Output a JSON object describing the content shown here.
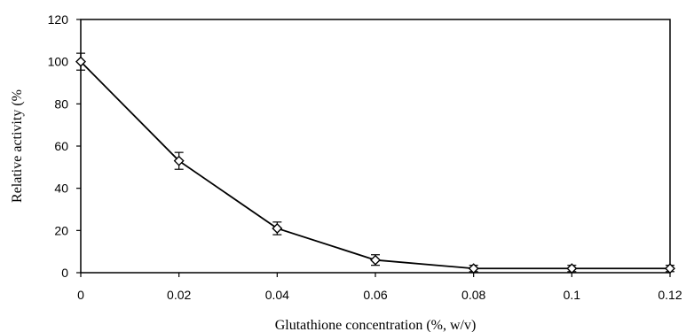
{
  "chart_data": {
    "type": "line",
    "xlabel": "Glutathione concentration (%, w/v)",
    "ylabel": "Relative activity (%",
    "xlim": [
      0,
      0.12
    ],
    "ylim": [
      0,
      120
    ],
    "x_ticks": [
      "0",
      "0.02",
      "0.04",
      "0.06",
      "0.08",
      "0.1",
      "0.12"
    ],
    "y_ticks": [
      "0",
      "20",
      "40",
      "60",
      "80",
      "100",
      "120"
    ],
    "grid": false,
    "legend": "none",
    "marker": "open-diamond",
    "line_color": "#000000",
    "series": [
      {
        "x": [
          0,
          0.02,
          0.04,
          0.06,
          0.08,
          0.1,
          0.12
        ],
        "y": [
          100,
          53,
          21,
          6,
          2,
          2,
          2
        ],
        "error": [
          4,
          4,
          3,
          2.5,
          1.5,
          1.5,
          1.5
        ]
      }
    ]
  }
}
